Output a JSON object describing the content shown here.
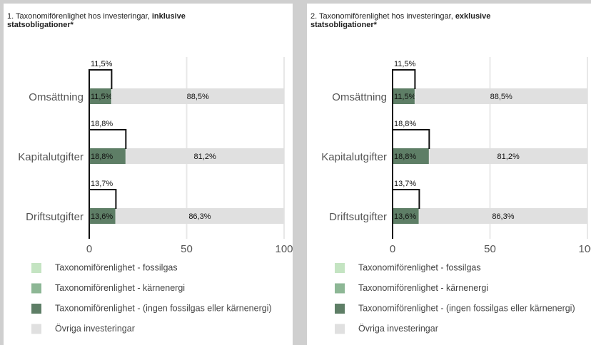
{
  "chart_data": [
    {
      "type": "bar",
      "title": "1. Taxonomiförenlighet hos investeringar, ",
      "title_emphasis": "inklusive statsobligationer*",
      "categories": [
        "Omsättning",
        "Kapitalutgifter",
        "Driftsutgifter"
      ],
      "series": [
        {
          "name": "Taxonomiförenlighet - fossilgas",
          "color": "#c4e4c2",
          "values": [
            0,
            0,
            0
          ]
        },
        {
          "name": "Taxonomiförenlighet - kärnenergi",
          "color": "#8db795",
          "values": [
            0,
            0,
            0
          ]
        },
        {
          "name": "Taxonomiförenlighet - (ingen fossilgas eller kärnenergi)",
          "color": "#5e7e66",
          "values": [
            11.5,
            18.8,
            13.6
          ],
          "value_labels": [
            "11,5%",
            "18,8%",
            "13,6%"
          ]
        },
        {
          "name": "Övriga investeringar",
          "color": "#e0e0e0",
          "values": [
            88.5,
            81.2,
            86.3
          ],
          "value_labels": [
            "88,5%",
            "81,2%",
            "86,3%"
          ]
        }
      ],
      "totals": {
        "values": [
          11.5,
          18.8,
          13.7
        ],
        "value_labels": [
          "11,5%",
          "18,8%",
          "13,7%"
        ]
      },
      "xlim": [
        0,
        100
      ],
      "xticks": [
        0,
        50,
        100
      ],
      "grid": true
    },
    {
      "type": "bar",
      "title": "2. Taxonomiförenlighet hos investeringar, ",
      "title_emphasis": "exklusive statsobligationer*",
      "categories": [
        "Omsättning",
        "Kapitalutgifter",
        "Driftsutgifter"
      ],
      "series": [
        {
          "name": "Taxonomiförenlighet - fossilgas",
          "color": "#c4e4c2",
          "values": [
            0,
            0,
            0
          ]
        },
        {
          "name": "Taxonomiförenlighet - kärnenergi",
          "color": "#8db795",
          "values": [
            0,
            0,
            0
          ]
        },
        {
          "name": "Taxonomiförenlighet - (ingen fossilgas eller kärnenergi)",
          "color": "#5e7e66",
          "values": [
            11.5,
            18.8,
            13.6
          ],
          "value_labels": [
            "11,5%",
            "18,8%",
            "13,6%"
          ]
        },
        {
          "name": "Övriga investeringar",
          "color": "#e0e0e0",
          "values": [
            88.5,
            81.2,
            86.3
          ],
          "value_labels": [
            "88,5%",
            "81,2%",
            "86,3%"
          ]
        }
      ],
      "totals": {
        "values": [
          11.5,
          18.8,
          13.7
        ],
        "value_labels": [
          "11,5%",
          "18,8%",
          "13,7%"
        ]
      },
      "xlim": [
        0,
        100
      ],
      "xticks": [
        0,
        50,
        100
      ],
      "grid": true
    }
  ]
}
